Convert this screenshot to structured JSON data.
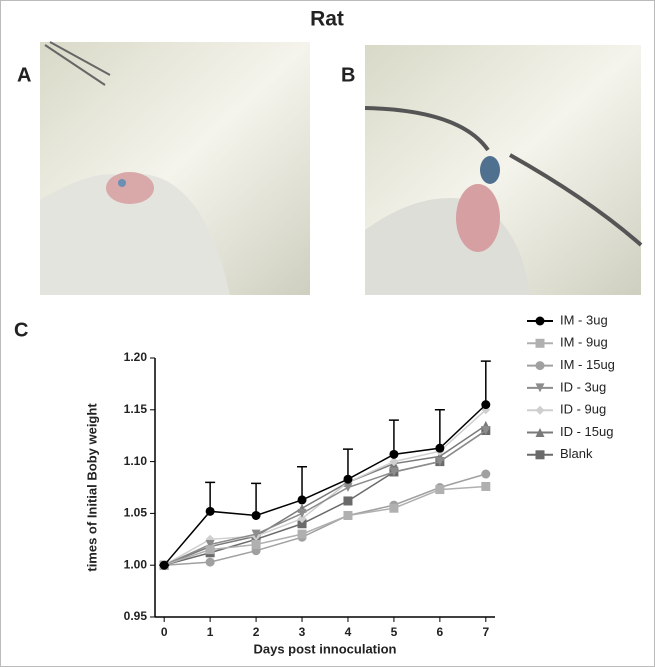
{
  "title": "Rat",
  "panel_labels": [
    "A",
    "B",
    "C"
  ],
  "chart_data": {
    "type": "line",
    "ylabel": "times of Initial Boby weight",
    "xlabel": "Days post innoculation",
    "x": [
      0,
      1,
      2,
      3,
      4,
      5,
      6,
      7
    ],
    "xlim": [
      -0.2,
      7.2
    ],
    "xticks": [
      0,
      1,
      2,
      3,
      4,
      5,
      6,
      7
    ],
    "ylim": [
      0.95,
      1.2
    ],
    "yticks": [
      0.95,
      {
        "value": 1.0,
        "label": "1.00"
      },
      1.05,
      {
        "value": 1.1,
        "label": "1.10"
      },
      1.15,
      {
        "value": 1.2,
        "label": "1.20"
      }
    ],
    "series": [
      {
        "name": "IM - 3ug",
        "color": "#000000",
        "marker": "circle",
        "values": [
          1.0,
          1.052,
          1.048,
          1.063,
          1.083,
          1.107,
          1.113,
          1.155
        ],
        "errors": [
          0,
          0.028,
          0.031,
          0.032,
          0.029,
          0.033,
          0.037,
          0.042
        ]
      },
      {
        "name": "IM - 9ug",
        "color": "#b0b0b0",
        "marker": "square",
        "values": [
          1.0,
          1.015,
          1.02,
          1.03,
          1.048,
          1.055,
          1.073,
          1.076
        ]
      },
      {
        "name": "IM - 15ug",
        "color": "#a0a0a0",
        "marker": "circle",
        "values": [
          1.0,
          1.003,
          1.014,
          1.027,
          1.048,
          1.058,
          1.075,
          1.088
        ]
      },
      {
        "name": "ID - 3ug",
        "color": "#8c8c8c",
        "marker": "triangle-down",
        "values": [
          1.0,
          1.02,
          1.03,
          1.05,
          1.075,
          1.09,
          1.1,
          1.13
        ]
      },
      {
        "name": "ID - 9ug",
        "color": "#cfcfcf",
        "marker": "diamond",
        "values": [
          1.0,
          1.025,
          1.028,
          1.045,
          1.08,
          1.1,
          1.11,
          1.15
        ]
      },
      {
        "name": "ID - 15ug",
        "color": "#7a7a7a",
        "marker": "triangle-up",
        "values": [
          1.0,
          1.018,
          1.028,
          1.055,
          1.08,
          1.098,
          1.105,
          1.135
        ]
      },
      {
        "name": "Blank",
        "color": "#6a6a6a",
        "marker": "square",
        "values": [
          1.0,
          1.012,
          1.025,
          1.04,
          1.062,
          1.09,
          1.1,
          1.13
        ]
      }
    ]
  }
}
